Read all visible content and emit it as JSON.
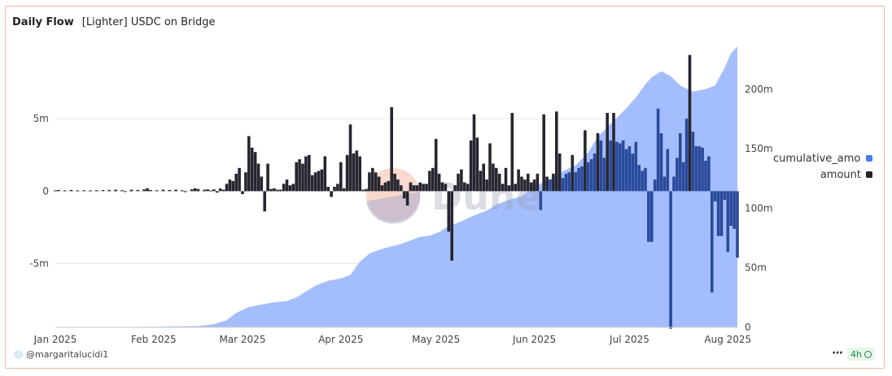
{
  "header": {
    "title": "Daily Flow",
    "subtitle": "[Lighter] USDC on Bridge"
  },
  "footer": {
    "username": "@margaritalucidi1",
    "more_label": "···",
    "refresh_badge": "4h"
  },
  "watermark": {
    "text": "Dune"
  },
  "colors": {
    "area": "#a4bdfc",
    "bar_dark": "#262630",
    "bar_overlap": "#2a4a9a",
    "legend_area": "#4a7cf0",
    "legend_bar": "#222222"
  },
  "chart_data": {
    "type": "bar+area",
    "x_range": [
      "2025-01-01",
      "2025-08-04"
    ],
    "x_ticks": [
      "Jan 2025",
      "Feb 2025",
      "Mar 2025",
      "Apr 2025",
      "May 2025",
      "Jun 2025",
      "Jul 2025",
      "Aug 2025"
    ],
    "y_left": {
      "ticks": [
        "5m",
        "0",
        "-5m"
      ],
      "ylim": [
        -9.4,
        10
      ]
    },
    "y_right": {
      "ticks": [
        "200m",
        "150m",
        "100m",
        "50m",
        "0"
      ],
      "ylim": [
        0,
        236
      ]
    },
    "grid": true,
    "legend": {
      "position": "right",
      "items": [
        "cumulative_amount",
        "amount"
      ]
    },
    "series": [
      {
        "name": "cumulative_amount",
        "type": "area",
        "axis": "right",
        "points": [
          [
            "2025-01-01",
            0
          ],
          [
            "2025-01-15",
            0.2
          ],
          [
            "2025-02-01",
            0.5
          ],
          [
            "2025-02-15",
            1
          ],
          [
            "2025-02-20",
            2.5
          ],
          [
            "2025-02-24",
            6
          ],
          [
            "2025-02-27",
            12
          ],
          [
            "2025-03-03",
            17
          ],
          [
            "2025-03-07",
            19
          ],
          [
            "2025-03-11",
            21
          ],
          [
            "2025-03-15",
            22
          ],
          [
            "2025-03-18",
            25
          ],
          [
            "2025-03-21",
            30
          ],
          [
            "2025-03-24",
            35
          ],
          [
            "2025-03-28",
            39
          ],
          [
            "2025-04-01",
            41
          ],
          [
            "2025-04-04",
            44
          ],
          [
            "2025-04-07",
            55
          ],
          [
            "2025-04-10",
            62
          ],
          [
            "2025-04-13",
            65
          ],
          [
            "2025-04-17",
            68
          ],
          [
            "2025-04-20",
            70
          ],
          [
            "2025-04-23",
            73
          ],
          [
            "2025-04-26",
            76
          ],
          [
            "2025-04-29",
            77
          ],
          [
            "2025-05-02",
            80
          ],
          [
            "2025-05-05",
            85
          ],
          [
            "2025-05-09",
            89
          ],
          [
            "2025-05-13",
            94
          ],
          [
            "2025-05-17",
            98
          ],
          [
            "2025-05-20",
            103
          ],
          [
            "2025-05-24",
            107
          ],
          [
            "2025-05-28",
            110
          ],
          [
            "2025-06-01",
            118
          ],
          [
            "2025-06-04",
            122
          ],
          [
            "2025-06-07",
            126
          ],
          [
            "2025-06-10",
            131
          ],
          [
            "2025-06-14",
            136
          ],
          [
            "2025-06-18",
            147
          ],
          [
            "2025-06-21",
            160
          ],
          [
            "2025-06-24",
            168
          ],
          [
            "2025-06-27",
            176
          ],
          [
            "2025-06-30",
            184
          ],
          [
            "2025-07-03",
            193
          ],
          [
            "2025-07-06",
            204
          ],
          [
            "2025-07-08",
            210
          ],
          [
            "2025-07-11",
            215
          ],
          [
            "2025-07-14",
            211
          ],
          [
            "2025-07-17",
            203
          ],
          [
            "2025-07-21",
            198
          ],
          [
            "2025-07-25",
            200
          ],
          [
            "2025-07-28",
            203
          ],
          [
            "2025-07-31",
            218
          ],
          [
            "2025-08-02",
            230
          ],
          [
            "2025-08-04",
            236
          ]
        ]
      },
      {
        "name": "amount",
        "type": "bar",
        "axis": "left",
        "points": [
          [
            "2025-01-01",
            0.05
          ],
          [
            "2025-01-02",
            0.08
          ],
          [
            "2025-01-04",
            0.05
          ],
          [
            "2025-01-06",
            0.08
          ],
          [
            "2025-01-08",
            0.05
          ],
          [
            "2025-01-10",
            0.06
          ],
          [
            "2025-01-12",
            0.05
          ],
          [
            "2025-01-14",
            0.06
          ],
          [
            "2025-01-16",
            0.07
          ],
          [
            "2025-01-18",
            0.08
          ],
          [
            "2025-01-20",
            0.1
          ],
          [
            "2025-01-22",
            0.06
          ],
          [
            "2025-01-23",
            -0.05
          ],
          [
            "2025-01-25",
            0.1
          ],
          [
            "2025-01-27",
            0.08
          ],
          [
            "2025-01-29",
            0.12
          ],
          [
            "2025-01-30",
            0.2
          ],
          [
            "2025-01-31",
            0.08
          ],
          [
            "2025-02-02",
            0.06
          ],
          [
            "2025-02-04",
            0.1
          ],
          [
            "2025-02-06",
            0.08
          ],
          [
            "2025-02-08",
            0.1
          ],
          [
            "2025-02-10",
            0.06
          ],
          [
            "2025-02-11",
            -0.06
          ],
          [
            "2025-02-13",
            0.12
          ],
          [
            "2025-02-14",
            0.2
          ],
          [
            "2025-02-15",
            0.15
          ],
          [
            "2025-02-17",
            0.1
          ],
          [
            "2025-02-18",
            0.12
          ],
          [
            "2025-02-19",
            0.05
          ],
          [
            "2025-02-20",
            0.12
          ],
          [
            "2025-02-21",
            -0.1
          ],
          [
            "2025-02-22",
            0.18
          ],
          [
            "2025-02-23",
            0.1
          ],
          [
            "2025-02-24",
            0.5
          ],
          [
            "2025-02-25",
            0.8
          ],
          [
            "2025-02-26",
            0.7
          ],
          [
            "2025-02-27",
            1.2
          ],
          [
            "2025-02-28",
            1.6
          ],
          [
            "2025-03-01",
            -0.2
          ],
          [
            "2025-03-02",
            1.3
          ],
          [
            "2025-03-03",
            3.8
          ],
          [
            "2025-03-04",
            3.0
          ],
          [
            "2025-03-05",
            2.7
          ],
          [
            "2025-03-06",
            1.9
          ],
          [
            "2025-03-07",
            1.0
          ],
          [
            "2025-03-08",
            -1.4
          ],
          [
            "2025-03-09",
            1.9
          ],
          [
            "2025-03-10",
            0.15
          ],
          [
            "2025-03-11",
            0.2
          ],
          [
            "2025-03-12",
            0.1
          ],
          [
            "2025-03-13",
            0.1
          ],
          [
            "2025-03-14",
            0.5
          ],
          [
            "2025-03-15",
            0.8
          ],
          [
            "2025-03-16",
            0.4
          ],
          [
            "2025-03-17",
            0.5
          ],
          [
            "2025-03-18",
            2.0
          ],
          [
            "2025-03-19",
            2.2
          ],
          [
            "2025-03-20",
            1.9
          ],
          [
            "2025-03-21",
            2.4
          ],
          [
            "2025-03-22",
            2.5
          ],
          [
            "2025-03-23",
            1.1
          ],
          [
            "2025-03-24",
            1.3
          ],
          [
            "2025-03-25",
            1.4
          ],
          [
            "2025-03-26",
            1.5
          ],
          [
            "2025-03-27",
            2.4
          ],
          [
            "2025-03-28",
            0.3
          ],
          [
            "2025-03-29",
            -0.4
          ],
          [
            "2025-03-30",
            0.3
          ],
          [
            "2025-03-31",
            0.5
          ],
          [
            "2025-04-01",
            2.0
          ],
          [
            "2025-04-02",
            0.2
          ],
          [
            "2025-04-03",
            2.5
          ],
          [
            "2025-04-04",
            4.6
          ],
          [
            "2025-04-05",
            2.6
          ],
          [
            "2025-04-06",
            2.8
          ],
          [
            "2025-04-07",
            2.4
          ],
          [
            "2025-04-08",
            0.1
          ],
          [
            "2025-04-09",
            0.15
          ],
          [
            "2025-04-10",
            1.3
          ],
          [
            "2025-04-11",
            1.6
          ],
          [
            "2025-04-12",
            1.3
          ],
          [
            "2025-04-13",
            1.0
          ],
          [
            "2025-04-14",
            0.4
          ],
          [
            "2025-04-15",
            0.6
          ],
          [
            "2025-04-16",
            0.7
          ],
          [
            "2025-04-17",
            5.8
          ],
          [
            "2025-04-18",
            1.2
          ],
          [
            "2025-04-19",
            0.8
          ],
          [
            "2025-04-20",
            0.4
          ],
          [
            "2025-04-21",
            -0.5
          ],
          [
            "2025-04-22",
            -1.0
          ],
          [
            "2025-04-23",
            0.6
          ],
          [
            "2025-04-24",
            0.4
          ],
          [
            "2025-04-25",
            0.4
          ],
          [
            "2025-04-26",
            0.6
          ],
          [
            "2025-04-27",
            0.5
          ],
          [
            "2025-04-28",
            0.5
          ],
          [
            "2025-04-29",
            1.4
          ],
          [
            "2025-04-30",
            1.6
          ],
          [
            "2025-05-01",
            3.6
          ],
          [
            "2025-05-02",
            1.2
          ],
          [
            "2025-05-03",
            0.6
          ],
          [
            "2025-05-04",
            0.5
          ],
          [
            "2025-05-05",
            -2.8
          ],
          [
            "2025-05-06",
            -4.8
          ],
          [
            "2025-05-07",
            0.4
          ],
          [
            "2025-05-08",
            1.2
          ],
          [
            "2025-05-09",
            1.5
          ],
          [
            "2025-05-10",
            0.6
          ],
          [
            "2025-05-11",
            0.5
          ],
          [
            "2025-05-12",
            3.5
          ],
          [
            "2025-05-13",
            5.3
          ],
          [
            "2025-05-14",
            3.7
          ],
          [
            "2025-05-15",
            1.4
          ],
          [
            "2025-05-16",
            1.9
          ],
          [
            "2025-05-17",
            0.8
          ],
          [
            "2025-05-18",
            3.3
          ],
          [
            "2025-05-19",
            1.9
          ],
          [
            "2025-05-20",
            1.6
          ],
          [
            "2025-05-21",
            1.2
          ],
          [
            "2025-05-22",
            0.5
          ],
          [
            "2025-05-23",
            1.6
          ],
          [
            "2025-05-24",
            0.4
          ],
          [
            "2025-05-25",
            5.4
          ],
          [
            "2025-05-26",
            0.5
          ],
          [
            "2025-05-27",
            1.5
          ],
          [
            "2025-05-28",
            1.0
          ],
          [
            "2025-05-29",
            0.8
          ],
          [
            "2025-05-30",
            1.2
          ],
          [
            "2025-05-31",
            0.6
          ],
          [
            "2025-06-01",
            0.8
          ],
          [
            "2025-06-02",
            1.2
          ],
          [
            "2025-06-03",
            -1.3
          ],
          [
            "2025-06-04",
            5.3
          ],
          [
            "2025-06-05",
            1.0
          ],
          [
            "2025-06-06",
            0.8
          ],
          [
            "2025-06-07",
            1.2
          ],
          [
            "2025-06-08",
            5.5
          ],
          [
            "2025-06-09",
            2.6
          ],
          [
            "2025-06-10",
            0.9
          ],
          [
            "2025-06-11",
            1.2
          ],
          [
            "2025-06-12",
            1.3
          ],
          [
            "2025-06-13",
            2.5
          ],
          [
            "2025-06-14",
            1.3
          ],
          [
            "2025-06-15",
            1.6
          ],
          [
            "2025-06-16",
            1.7
          ],
          [
            "2025-06-17",
            4.2
          ],
          [
            "2025-06-18",
            2.0
          ],
          [
            "2025-06-19",
            2.2
          ],
          [
            "2025-06-20",
            2.6
          ],
          [
            "2025-06-21",
            4.0
          ],
          [
            "2025-06-22",
            3.5
          ],
          [
            "2025-06-23",
            2.3
          ],
          [
            "2025-06-24",
            5.4
          ],
          [
            "2025-06-25",
            3.5
          ],
          [
            "2025-06-26",
            5.4
          ],
          [
            "2025-06-27",
            3.4
          ],
          [
            "2025-06-28",
            3.3
          ],
          [
            "2025-06-29",
            3.5
          ],
          [
            "2025-06-30",
            2.9
          ],
          [
            "2025-07-01",
            3.1
          ],
          [
            "2025-07-02",
            2.6
          ],
          [
            "2025-07-03",
            3.4
          ],
          [
            "2025-07-04",
            1.8
          ],
          [
            "2025-07-05",
            1.4
          ],
          [
            "2025-07-06",
            1.6
          ],
          [
            "2025-07-07",
            -3.5
          ],
          [
            "2025-07-08",
            -3.5
          ],
          [
            "2025-07-09",
            0.8
          ],
          [
            "2025-07-10",
            5.7
          ],
          [
            "2025-07-11",
            4.0
          ],
          [
            "2025-07-12",
            1.0
          ],
          [
            "2025-07-13",
            2.9
          ],
          [
            "2025-07-14",
            -9.5
          ],
          [
            "2025-07-15",
            1.0
          ],
          [
            "2025-07-16",
            2.3
          ],
          [
            "2025-07-17",
            4.0
          ],
          [
            "2025-07-18",
            2.0
          ],
          [
            "2025-07-19",
            5.0
          ],
          [
            "2025-07-20",
            9.4
          ],
          [
            "2025-07-21",
            4.1
          ],
          [
            "2025-07-22",
            3.1
          ],
          [
            "2025-07-23",
            3.1
          ],
          [
            "2025-07-24",
            3.0
          ],
          [
            "2025-07-25",
            2.1
          ],
          [
            "2025-07-26",
            2.4
          ],
          [
            "2025-07-27",
            -7.0
          ],
          [
            "2025-07-28",
            -0.7
          ],
          [
            "2025-07-29",
            -3.1
          ],
          [
            "2025-07-30",
            -3.1
          ],
          [
            "2025-07-31",
            -0.6
          ],
          [
            "2025-08-01",
            -4.2
          ],
          [
            "2025-08-02",
            -2.4
          ],
          [
            "2025-08-03",
            -2.6
          ],
          [
            "2025-08-04",
            -4.6
          ]
        ]
      }
    ]
  }
}
